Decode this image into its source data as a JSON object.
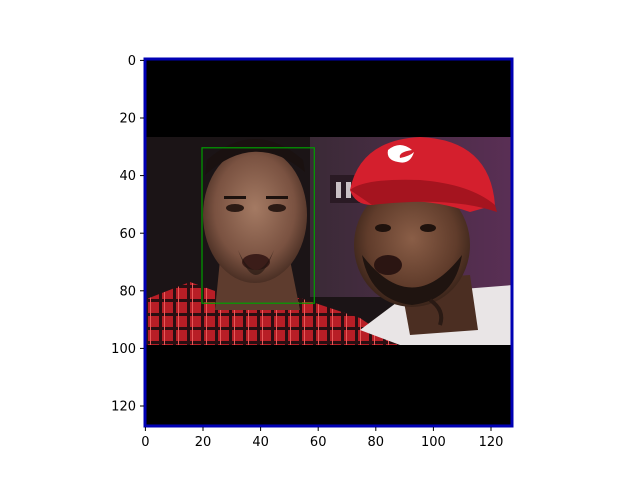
{
  "figure": {
    "x_ticks": [
      "0",
      "20",
      "40",
      "60",
      "80",
      "100",
      "120"
    ],
    "y_ticks": [
      "0",
      "20",
      "40",
      "60",
      "80",
      "100",
      "120"
    ],
    "image_content": "two men face photograph, letterboxed",
    "detection_box": {
      "x_min": 20,
      "y_min": 31,
      "x_max": 59,
      "y_max": 85
    },
    "colors": {
      "border": "#0000b4",
      "detection_box": "#00a000",
      "letterbox": "#000000"
    }
  }
}
